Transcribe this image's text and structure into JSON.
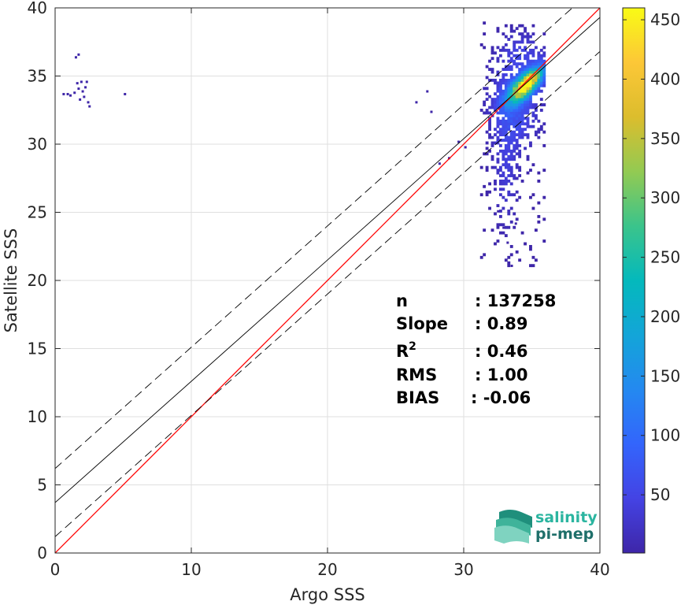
{
  "chart_data": {
    "type": "heatmap",
    "xlabel": "Argo SSS",
    "ylabel": "Satellite SSS",
    "xlim": [
      0,
      40
    ],
    "ylim": [
      0,
      40
    ],
    "grid": true,
    "x_ticks": [
      0,
      10,
      20,
      30,
      40
    ],
    "y_ticks": [
      0,
      5,
      10,
      15,
      20,
      25,
      30,
      35,
      40
    ],
    "colorbar": {
      "range": [
        1,
        460
      ],
      "ticks": [
        50,
        100,
        150,
        200,
        250,
        300,
        350,
        400,
        450
      ],
      "colormap": "parula"
    },
    "density_cluster": {
      "core_x": 34.5,
      "core_y": 34.3,
      "core_count": 455,
      "x_range": [
        31.2,
        35.9
      ],
      "y_range": [
        21.0,
        39.0
      ]
    },
    "lines": [
      {
        "kind": "one-to-one",
        "color": "#ff0000",
        "style": "solid",
        "slope": 1.0,
        "intercept": 0.0
      },
      {
        "kind": "regression",
        "color": "#000000",
        "style": "solid",
        "slope": 0.89,
        "intercept": 3.7
      },
      {
        "kind": "regression-upper",
        "color": "#000000",
        "style": "dashed",
        "slope": 0.89,
        "intercept": 6.2
      },
      {
        "kind": "regression-lower",
        "color": "#000000",
        "style": "dashed",
        "slope": 0.89,
        "intercept": 1.2
      }
    ],
    "stats": [
      {
        "label": "n",
        "value": ": 137258"
      },
      {
        "label": "Slope",
        "value": ": 0.89"
      },
      {
        "label": "R",
        "sup": "2",
        "value": ": 0.46"
      },
      {
        "label": "RMS",
        "value": ": 1.00"
      },
      {
        "label": "BIAS",
        "value": ": -0.06"
      }
    ],
    "outliers": [
      [
        0.6,
        33.7
      ],
      [
        0.9,
        33.7
      ],
      [
        1.1,
        33.6
      ],
      [
        1.4,
        33.8
      ],
      [
        1.6,
        34.5
      ],
      [
        1.7,
        34.1
      ],
      [
        1.8,
        33.3
      ],
      [
        1.9,
        34.6
      ],
      [
        2.0,
        33.9
      ],
      [
        2.1,
        33.5
      ],
      [
        2.2,
        34.2
      ],
      [
        2.3,
        34.6
      ],
      [
        2.4,
        33.1
      ],
      [
        2.5,
        32.8
      ],
      [
        1.5,
        36.4
      ],
      [
        1.7,
        36.6
      ],
      [
        5.1,
        33.7
      ],
      [
        26.5,
        33.1
      ],
      [
        27.3,
        33.9
      ],
      [
        27.6,
        32.4
      ],
      [
        28.2,
        28.6
      ],
      [
        28.9,
        29.0
      ],
      [
        29.6,
        30.2
      ],
      [
        30.1,
        29.8
      ],
      [
        33.5,
        21.1
      ],
      [
        32.9,
        23.9
      ],
      [
        33.2,
        22.8
      ],
      [
        33.8,
        24.2
      ],
      [
        32.5,
        25.1
      ]
    ]
  },
  "logo": {
    "line1": "salinity",
    "line2": "pi-mep",
    "color1": "#2bb5a0",
    "color2": "#1f6f6a"
  }
}
